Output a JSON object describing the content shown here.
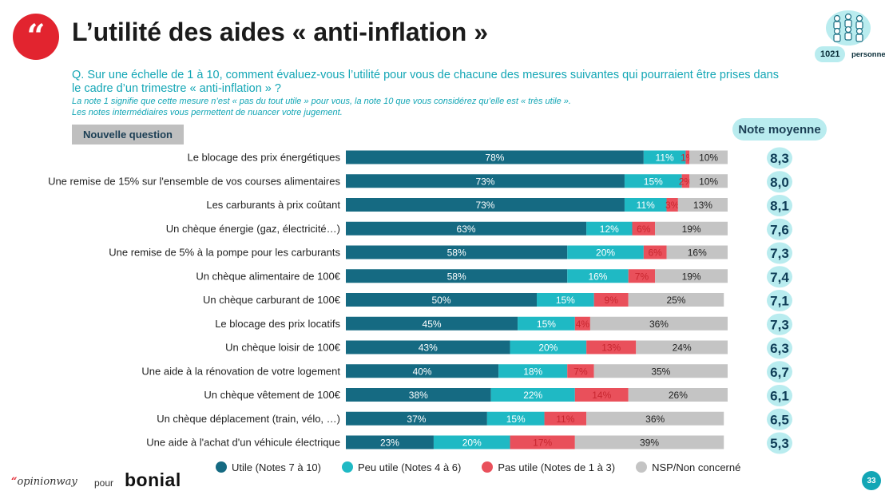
{
  "header": {
    "quote_mark": "“",
    "title": "L’utilité des aides « anti-inflation »",
    "sample_count": "1021",
    "sample_unit": "personnes"
  },
  "question": {
    "text": "Q. Sur une échelle de 1 à 10, comment évaluez-vous l’utilité pour vous de chacune des mesures suivantes qui pourraient être prises dans le cadre d’un trimestre « anti-inflation » ?",
    "note1": "La note 1 signifie que cette mesure n’est « pas du tout utile » pour vous, la note 10 que vous considérez qu’elle est « très utile ».",
    "note2": "Les notes intermédiaires vous permettent de nuancer votre jugement."
  },
  "new_question_tag": "Nouvelle question",
  "avg_header": "Note moyenne",
  "colors": {
    "utile": "#156a82",
    "peu_utile": "#1fb9c4",
    "pas_utile": "#e9505b",
    "nsp": "#c4c4c4",
    "avg_bubble": "#b9ecef",
    "avg_text": "#0f3d57"
  },
  "chart_data": {
    "type": "bar",
    "orientation": "horizontal",
    "stacked": true,
    "categories": [
      "Le blocage des prix énergétiques",
      "Une remise de 15% sur l'ensemble de vos courses alimentaires",
      "Les carburants à prix coûtant",
      "Un chèque énergie (gaz, électricité…)",
      "Une remise de 5% à la pompe pour les carburants",
      "Un chèque alimentaire de 100€",
      "Un chèque carburant de 100€",
      "Le blocage des prix locatifs",
      "Un chèque loisir de 100€",
      "Une aide à la rénovation de votre logement",
      "Un chèque vêtement de 100€",
      "Un chèque déplacement (train, vélo, …)",
      "Une aide à l'achat d'un véhicule électrique"
    ],
    "series": [
      {
        "name": "Utile (Notes 7 à 10)",
        "values": [
          78,
          73,
          73,
          63,
          58,
          58,
          50,
          45,
          43,
          40,
          38,
          37,
          23
        ]
      },
      {
        "name": "Peu utile (Notes 4 à 6)",
        "values": [
          11,
          15,
          11,
          12,
          20,
          16,
          15,
          15,
          20,
          18,
          22,
          15,
          20
        ]
      },
      {
        "name": "Pas utile (Notes de 1 à 3)",
        "values": [
          1,
          2,
          3,
          6,
          6,
          7,
          9,
          4,
          13,
          7,
          14,
          11,
          17
        ]
      },
      {
        "name": "NSP/Non concerné",
        "values": [
          10,
          10,
          13,
          19,
          16,
          19,
          25,
          36,
          24,
          35,
          26,
          36,
          39
        ]
      }
    ],
    "averages": [
      "8,3",
      "8,0",
      "8,1",
      "7,6",
      "7,3",
      "7,4",
      "7,1",
      "7,3",
      "6,3",
      "6,7",
      "6,1",
      "6,5",
      "5,3"
    ],
    "value_suffix": "%",
    "xlim": [
      0,
      100
    ],
    "legend_position": "bottom",
    "grid": false
  },
  "footer": {
    "brand_mark": "“",
    "brand": "opinionway",
    "connector": "pour",
    "client": "bonial",
    "page_number": "33"
  }
}
